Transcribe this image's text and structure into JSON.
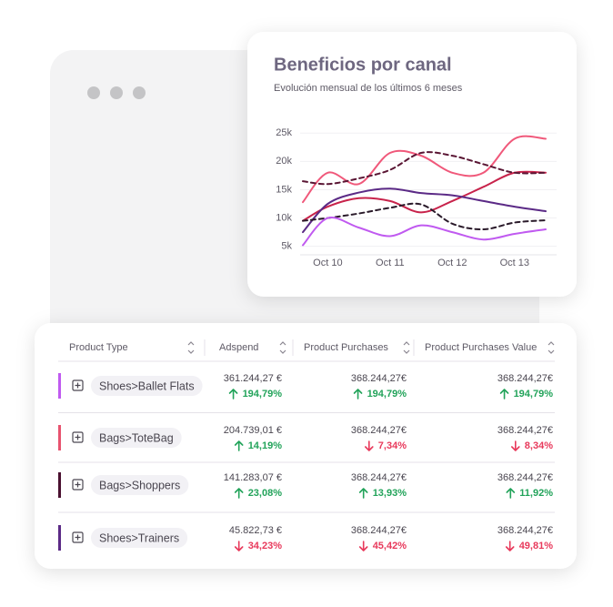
{
  "chart_data": {
    "type": "line",
    "title": "Beneficios por canal",
    "subtitle": "Evolución mensual de los últimos 6 meses",
    "x": [
      9.6,
      10,
      10.5,
      11,
      11.5,
      12,
      12.5,
      13,
      13.5
    ],
    "xlim": [
      9.6,
      13.5
    ],
    "xticks": [
      {
        "value": 10,
        "label": "Oct 10"
      },
      {
        "value": 11,
        "label": "Oct 11"
      },
      {
        "value": 12,
        "label": "Oct 12"
      },
      {
        "value": 13,
        "label": "Oct 13"
      }
    ],
    "ylim": [
      3.5,
      26
    ],
    "yticks": [
      {
        "value": 5,
        "label": "5k"
      },
      {
        "value": 10,
        "label": "10k"
      },
      {
        "value": 15,
        "label": "15k"
      },
      {
        "value": 20,
        "label": "20k"
      },
      {
        "value": 25,
        "label": "25k"
      }
    ],
    "grid": true,
    "series": [
      {
        "color": "#f0587a",
        "dashed": false,
        "values": [
          12.8,
          18,
          16,
          21.5,
          21,
          18,
          18,
          24,
          24
        ]
      },
      {
        "color": "#c8234b",
        "dashed": false,
        "values": [
          9.5,
          12,
          13.5,
          13,
          11,
          13,
          15.5,
          18,
          18
        ]
      },
      {
        "color": "#5b2a86",
        "dashed": false,
        "values": [
          7.5,
          12.5,
          14.5,
          15.2,
          14.4,
          14,
          13,
          12,
          11.2
        ]
      },
      {
        "color": "#5a1634",
        "dashed": true,
        "values": [
          16.5,
          16,
          17,
          18.5,
          21.5,
          21,
          19.5,
          18,
          18
        ]
      },
      {
        "color": "#2a1a2a",
        "dashed": true,
        "values": [
          9.5,
          10,
          10.8,
          11.8,
          12.4,
          9,
          8,
          9.2,
          9.6
        ]
      },
      {
        "color": "#c05af0",
        "dashed": false,
        "values": [
          5.2,
          10,
          8.3,
          6.8,
          8.7,
          7.5,
          6.2,
          7.2,
          8
        ]
      }
    ]
  },
  "table": {
    "columns": [
      "Product Type",
      "Adspend",
      "Product Purchases",
      "Product Purchases Value"
    ],
    "rows": [
      {
        "color": "#c05af0",
        "label": "Shoes>Ballet Flats",
        "cells": [
          {
            "value": "361.244,27 €",
            "change": "194,79%",
            "direction": "up"
          },
          {
            "value": "368.244,27€",
            "change": "194,79%",
            "direction": "up"
          },
          {
            "value": "368.244,27€",
            "change": "194,79%",
            "direction": "up"
          }
        ]
      },
      {
        "color": "#e8536f",
        "label": "Bags>ToteBag",
        "cells": [
          {
            "value": "204.739,01 €",
            "change": "14,19%",
            "direction": "up"
          },
          {
            "value": "368.244,27€",
            "change": "7,34%",
            "direction": "down"
          },
          {
            "value": "368.244,27€",
            "change": "8,34%",
            "direction": "down"
          }
        ]
      },
      {
        "color": "#4a1030",
        "label": "Bags>Shoppers",
        "cells": [
          {
            "value": "141.283,07 €",
            "change": "23,08%",
            "direction": "up"
          },
          {
            "value": "368.244,27€",
            "change": "13,93%",
            "direction": "up"
          },
          {
            "value": "368.244,27€",
            "change": "11,92%",
            "direction": "up"
          }
        ]
      },
      {
        "color": "#5b2a86",
        "label": "Shoes>Trainers",
        "cells": [
          {
            "value": "45.822,73 €",
            "change": "34,23%",
            "direction": "down"
          },
          {
            "value": "368.244,27€",
            "change": "45,42%",
            "direction": "down"
          },
          {
            "value": "368.244,27€",
            "change": "49,81%",
            "direction": "down"
          }
        ]
      }
    ]
  }
}
